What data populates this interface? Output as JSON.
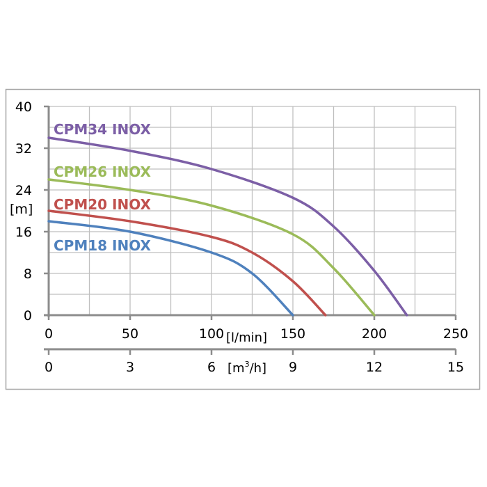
{
  "chart_data": {
    "type": "line",
    "title": "",
    "ylabel": "[m]",
    "xlabel": "[l/min]",
    "x2label_base": "[m",
    "x2label_sup": "3",
    "x2label_end": "/h]",
    "xlim": [
      0,
      250
    ],
    "ylim": [
      0,
      40
    ],
    "x2lim": [
      0,
      15
    ],
    "grid": true,
    "yticks": [
      "0",
      "8",
      "16",
      "24",
      "32",
      "40"
    ],
    "xticks": [
      "0",
      "50",
      "100",
      "150",
      "200",
      "250"
    ],
    "x2ticks": [
      "0",
      "3",
      "6",
      "9",
      "12",
      "15"
    ],
    "series": [
      {
        "name": "CPM34 INOX",
        "color": "#7c5fa6",
        "x": [
          0,
          50,
          100,
          150,
          175,
          200,
          220
        ],
        "y": [
          34,
          31.5,
          28,
          22.5,
          17,
          8.5,
          0
        ]
      },
      {
        "name": "CPM26 INOX",
        "color": "#9bbb59",
        "x": [
          0,
          50,
          100,
          150,
          175,
          200
        ],
        "y": [
          26,
          24,
          21,
          15.5,
          9,
          0
        ]
      },
      {
        "name": "CPM20 INOX",
        "color": "#c0504d",
        "x": [
          0,
          50,
          100,
          125,
          150,
          170
        ],
        "y": [
          20,
          18,
          15,
          12,
          6.5,
          0
        ]
      },
      {
        "name": "CPM18 INOX",
        "color": "#4f81bd",
        "x": [
          0,
          50,
          100,
          125,
          150
        ],
        "y": [
          18,
          16,
          12,
          8,
          0
        ]
      }
    ]
  }
}
